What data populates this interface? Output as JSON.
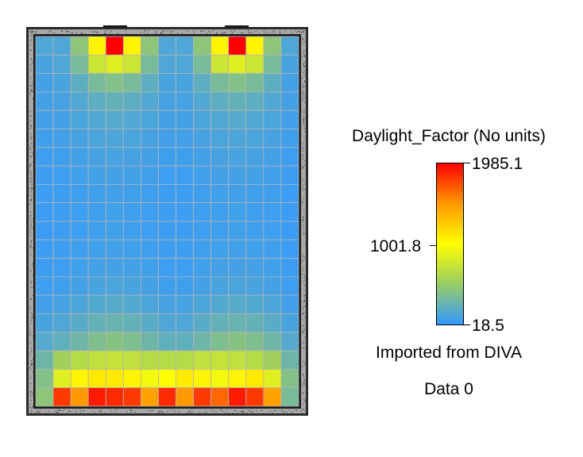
{
  "chart_data": {
    "type": "heatmap",
    "title": "Daylight_Factor (No units)",
    "subtitle": "Imported from DIVA",
    "caption": "Data 0",
    "scale": {
      "min": 18.5,
      "mid": 1001.8,
      "max": 1985.1,
      "min_label": "18.5",
      "mid_label": "1001.8",
      "max_label": "1985.1",
      "colors": [
        "#3399ff",
        "#99cc66",
        "#ffff00",
        "#ff9900",
        "#ff0000"
      ]
    },
    "cols": 15,
    "rows": 20,
    "values": [
      [
        150,
        150,
        450,
        1050,
        1985,
        1050,
        450,
        150,
        150,
        450,
        1050,
        1985,
        1050,
        450,
        150
      ],
      [
        120,
        150,
        350,
        750,
        850,
        750,
        350,
        150,
        150,
        350,
        750,
        850,
        750,
        350,
        120
      ],
      [
        100,
        120,
        220,
        350,
        400,
        350,
        220,
        120,
        120,
        220,
        350,
        400,
        350,
        220,
        100
      ],
      [
        100,
        110,
        160,
        220,
        250,
        220,
        160,
        110,
        110,
        160,
        220,
        250,
        220,
        160,
        100
      ],
      [
        90,
        100,
        130,
        160,
        180,
        160,
        130,
        100,
        100,
        130,
        160,
        180,
        160,
        130,
        90
      ],
      [
        80,
        90,
        110,
        130,
        140,
        130,
        110,
        90,
        90,
        110,
        130,
        140,
        130,
        110,
        80
      ],
      [
        70,
        80,
        95,
        110,
        115,
        110,
        95,
        80,
        80,
        95,
        110,
        115,
        110,
        95,
        70
      ],
      [
        60,
        70,
        85,
        95,
        100,
        95,
        85,
        70,
        70,
        85,
        95,
        100,
        95,
        85,
        60
      ],
      [
        55,
        65,
        75,
        85,
        90,
        85,
        75,
        65,
        65,
        75,
        85,
        90,
        85,
        75,
        55
      ],
      [
        50,
        60,
        70,
        80,
        85,
        80,
        70,
        60,
        60,
        70,
        80,
        85,
        80,
        70,
        50
      ],
      [
        50,
        60,
        70,
        80,
        85,
        80,
        70,
        60,
        60,
        70,
        80,
        85,
        80,
        70,
        50
      ],
      [
        55,
        65,
        75,
        85,
        90,
        85,
        75,
        65,
        65,
        75,
        85,
        90,
        85,
        75,
        55
      ],
      [
        60,
        70,
        85,
        95,
        100,
        95,
        85,
        70,
        70,
        85,
        95,
        100,
        95,
        85,
        60
      ],
      [
        70,
        80,
        100,
        120,
        130,
        120,
        100,
        80,
        80,
        100,
        120,
        130,
        120,
        100,
        70
      ],
      [
        90,
        110,
        140,
        170,
        190,
        170,
        140,
        110,
        110,
        140,
        170,
        190,
        170,
        140,
        90
      ],
      [
        120,
        150,
        200,
        250,
        280,
        250,
        200,
        150,
        150,
        200,
        250,
        280,
        250,
        200,
        120
      ],
      [
        180,
        230,
        300,
        380,
        420,
        380,
        300,
        230,
        230,
        300,
        380,
        420,
        380,
        300,
        180
      ],
      [
        300,
        550,
        650,
        700,
        720,
        700,
        650,
        650,
        650,
        700,
        720,
        700,
        650,
        550,
        300
      ],
      [
        400,
        850,
        1050,
        1100,
        1100,
        1050,
        950,
        1000,
        1100,
        1050,
        950,
        1050,
        1100,
        850,
        400
      ],
      [
        450,
        1800,
        1500,
        1900,
        1850,
        1800,
        1450,
        1850,
        1500,
        1800,
        1650,
        1900,
        1800,
        1450,
        350
      ]
    ]
  }
}
